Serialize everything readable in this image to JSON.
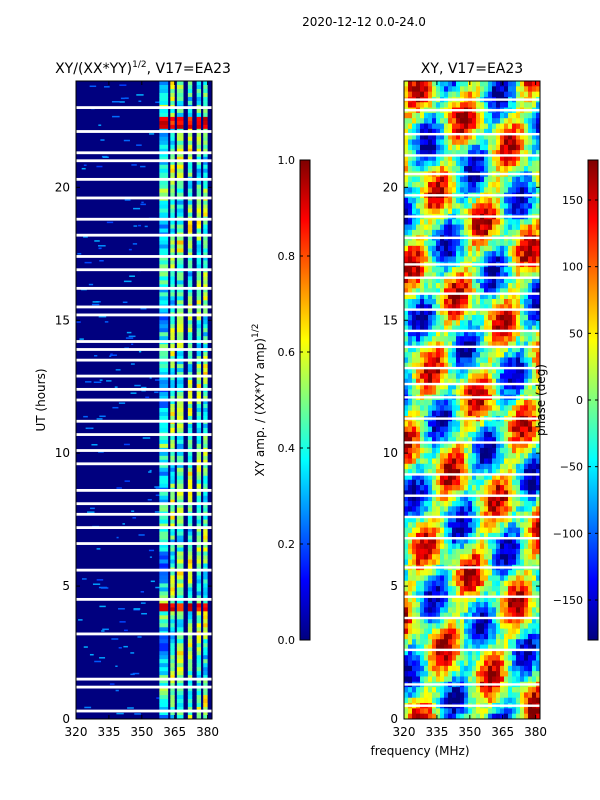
{
  "suptitle": "2020-12-12 0.0-24.0",
  "shared_xlabel": "frequency (MHz)",
  "colors": {
    "jet": [
      "#00007f",
      "#0000ff",
      "#007fff",
      "#00ffff",
      "#7fff7f",
      "#ffff00",
      "#ff7f00",
      "#ff0000",
      "#7f0000"
    ],
    "gap": "#ffffff",
    "frame": "#000000"
  },
  "chart_data": [
    {
      "type": "heatmap",
      "title_main": "XY/(XX*YY)",
      "title_sup": "1/2",
      "title_tail": ", V17=EA23",
      "xlabel": "",
      "ylabel": "UT (hours)",
      "xlim": [
        320,
        382
      ],
      "ylim": [
        0,
        24
      ],
      "xticks": [
        320,
        335,
        350,
        365,
        380
      ],
      "xtick_labels": [
        "320",
        "335",
        "350",
        "365",
        "380"
      ],
      "yticks": [
        0,
        5,
        10,
        15,
        20
      ],
      "ytick_labels": [
        "0",
        "5",
        "10",
        "15",
        "20"
      ],
      "bright_bands_mhz": [
        [
          358,
          362
        ],
        [
          363,
          365
        ],
        [
          366,
          369
        ],
        [
          371,
          373
        ],
        [
          375,
          377
        ],
        [
          378,
          380
        ]
      ],
      "flare_hours": [
        4.0,
        4.4,
        22.2,
        22.7
      ],
      "gap_hours": [
        0.3,
        1.2,
        1.5,
        3.2,
        4.5,
        5.6,
        6.6,
        7.2,
        7.7,
        8.1,
        8.6,
        9.6,
        10.1,
        10.7,
        11.2,
        12.0,
        12.4,
        12.9,
        13.5,
        13.9,
        14.2,
        15.2,
        15.5,
        16.2,
        16.9,
        17.4,
        18.2,
        18.8,
        19.6,
        20.3,
        21.0,
        21.3,
        22.1,
        23.0
      ],
      "colorbar": {
        "label_main": "XY amp. / (XX*YY amp)",
        "label_sup": "1/2",
        "range": [
          0.0,
          1.0
        ],
        "ticks": [
          0.0,
          0.2,
          0.4,
          0.6,
          0.8,
          1.0
        ],
        "tick_labels": [
          "0.0",
          "0.2",
          "0.4",
          "0.6",
          "0.8",
          "1.0"
        ]
      }
    },
    {
      "type": "heatmap",
      "title_main": "XY, V17=EA23",
      "xlabel": "frequency (MHz)",
      "ylabel": "",
      "xlim": [
        320,
        382
      ],
      "ylim": [
        0,
        24
      ],
      "xticks": [
        320,
        335,
        350,
        365,
        380
      ],
      "xtick_labels": [
        "320",
        "335",
        "350",
        "365",
        "380"
      ],
      "yticks": [
        0,
        5,
        10,
        15,
        20
      ],
      "ytick_labels": [
        "0",
        "5",
        "10",
        "15",
        "20"
      ],
      "gap_hours": [
        0.5,
        1.3,
        2.6,
        3.8,
        4.6,
        5.7,
        6.8,
        7.6,
        8.4,
        9.2,
        10.4,
        11.3,
        12.1,
        12.6,
        13.2,
        14.0,
        14.6,
        15.4,
        16.0,
        16.6,
        17.1,
        18.1,
        18.9,
        19.7,
        20.5,
        21.2,
        22.0,
        22.9,
        23.3
      ],
      "colorbar": {
        "label_main": "phase (deg)",
        "range": [
          -180,
          180
        ],
        "ticks": [
          -150,
          -100,
          -50,
          0,
          50,
          100,
          150
        ],
        "tick_labels": [
          "−150",
          "−100",
          "−50",
          "0",
          "50",
          "100",
          "150"
        ]
      }
    }
  ]
}
